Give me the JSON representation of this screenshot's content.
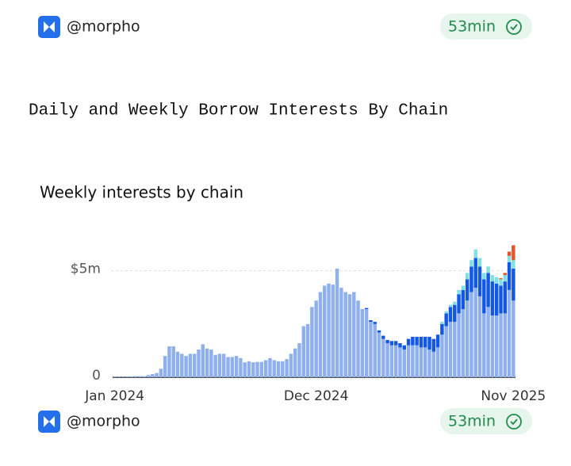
{
  "header": {
    "handle": "@morpho",
    "age": "53min"
  },
  "section_title": "Daily and Weekly Borrow Interests By Chain",
  "chart_data": {
    "type": "bar",
    "stacked": true,
    "title": "Weekly interests by chain",
    "categories": [
      "Jan 2024",
      null,
      null,
      null,
      null,
      null,
      null,
      null,
      null,
      null,
      null,
      null,
      null,
      null,
      null,
      null,
      null,
      null,
      null,
      null,
      null,
      null,
      null,
      null,
      null,
      null,
      null,
      null,
      null,
      null,
      null,
      null,
      null,
      null,
      null,
      null,
      null,
      null,
      null,
      null,
      null,
      null,
      null,
      null,
      null,
      null,
      null,
      null,
      "Dec 2024",
      null,
      null,
      null,
      null,
      null,
      null,
      null,
      null,
      null,
      null,
      null,
      null,
      null,
      null,
      null,
      null,
      null,
      null,
      null,
      null,
      null,
      null,
      null,
      null,
      null,
      null,
      null,
      null,
      null,
      null,
      null,
      null,
      null,
      null,
      null,
      null,
      null,
      null,
      null,
      null,
      null,
      null,
      null,
      null,
      null,
      null,
      "Nov 2025"
    ],
    "series": [
      {
        "color": "#8fb0ec",
        "values": [
          30000,
          30000,
          30000,
          40000,
          40000,
          50000,
          50000,
          50000,
          100000,
          150000,
          200000,
          400000,
          1000000,
          1450000,
          1450000,
          1200000,
          1100000,
          1000000,
          1100000,
          1100000,
          1300000,
          1550000,
          1350000,
          1300000,
          1050000,
          1100000,
          1100000,
          950000,
          950000,
          1000000,
          900000,
          700000,
          750000,
          700000,
          720000,
          720000,
          800000,
          900000,
          800000,
          750000,
          750000,
          850000,
          1100000,
          1350000,
          1600000,
          2400000,
          2500000,
          3300000,
          3600000,
          4000000,
          4300000,
          4400000,
          4350000,
          5100000,
          4200000,
          4000000,
          3900000,
          4000000,
          3600000,
          3200000,
          3200000,
          2600000,
          2500000,
          2100000,
          1800000,
          1600000,
          1500000,
          1500000,
          1400000,
          1300000,
          1500000,
          1500000,
          1500000,
          1400000,
          1400000,
          1300000,
          1200000,
          1400000,
          2000000,
          2400000,
          2600000,
          2600000,
          3000000,
          3200000,
          3600000,
          4000000,
          4200000,
          3800000,
          3000000,
          3300000,
          2900000,
          2900000,
          3000000,
          3000000,
          4100000,
          3600000
        ]
      },
      {
        "color": "#1257e6",
        "values": [
          0,
          0,
          0,
          0,
          0,
          0,
          0,
          0,
          0,
          0,
          0,
          0,
          0,
          0,
          0,
          0,
          0,
          0,
          0,
          0,
          0,
          0,
          0,
          0,
          0,
          0,
          0,
          0,
          0,
          0,
          0,
          0,
          0,
          0,
          0,
          0,
          0,
          0,
          0,
          0,
          0,
          0,
          0,
          0,
          0,
          0,
          0,
          0,
          0,
          0,
          0,
          0,
          0,
          0,
          0,
          0,
          0,
          0,
          0,
          0,
          50000,
          80000,
          100000,
          100000,
          150000,
          150000,
          200000,
          200000,
          200000,
          200000,
          300000,
          400000,
          400000,
          500000,
          500000,
          600000,
          600000,
          600000,
          500000,
          600000,
          700000,
          800000,
          900000,
          900000,
          1000000,
          1200000,
          1400000,
          1400000,
          1600000,
          1600000,
          1600000,
          1500000,
          1300000,
          1500000,
          1300000,
          1500000
        ]
      },
      {
        "color": "#7fe0e6",
        "values": [
          0,
          0,
          0,
          0,
          0,
          0,
          0,
          0,
          0,
          0,
          0,
          0,
          0,
          0,
          0,
          0,
          0,
          0,
          0,
          0,
          0,
          0,
          0,
          0,
          0,
          0,
          0,
          0,
          0,
          0,
          0,
          0,
          0,
          0,
          0,
          0,
          0,
          0,
          0,
          0,
          0,
          0,
          0,
          0,
          0,
          0,
          0,
          0,
          0,
          0,
          0,
          0,
          0,
          0,
          0,
          0,
          0,
          0,
          0,
          0,
          0,
          0,
          0,
          0,
          0,
          0,
          0,
          0,
          0,
          0,
          0,
          0,
          0,
          0,
          0,
          0,
          0,
          0,
          100000,
          100000,
          100000,
          150000,
          200000,
          200000,
          300000,
          300000,
          400000,
          400000,
          300000,
          300000,
          300000,
          300000,
          300000,
          300000,
          300000,
          400000
        ]
      },
      {
        "color": "#e8542a",
        "values": [
          0,
          0,
          0,
          0,
          0,
          0,
          0,
          0,
          0,
          0,
          0,
          0,
          0,
          0,
          0,
          0,
          0,
          0,
          0,
          0,
          0,
          0,
          0,
          0,
          0,
          0,
          0,
          0,
          0,
          0,
          0,
          0,
          0,
          0,
          0,
          0,
          0,
          0,
          0,
          0,
          0,
          0,
          0,
          0,
          0,
          0,
          0,
          0,
          0,
          0,
          0,
          0,
          0,
          0,
          0,
          0,
          0,
          0,
          0,
          0,
          0,
          0,
          0,
          0,
          0,
          0,
          0,
          0,
          0,
          0,
          0,
          0,
          0,
          0,
          0,
          0,
          0,
          0,
          0,
          0,
          0,
          0,
          0,
          0,
          0,
          0,
          0,
          0,
          0,
          0,
          0,
          0,
          50000,
          100000,
          200000,
          700000
        ]
      }
    ],
    "ylim": [
      0,
      6700000
    ],
    "yticks": [
      0,
      {
        "value": 5000000,
        "label": "$5m"
      }
    ],
    "grid": true
  },
  "footer": {
    "handle": "@morpho",
    "age": "53min"
  }
}
